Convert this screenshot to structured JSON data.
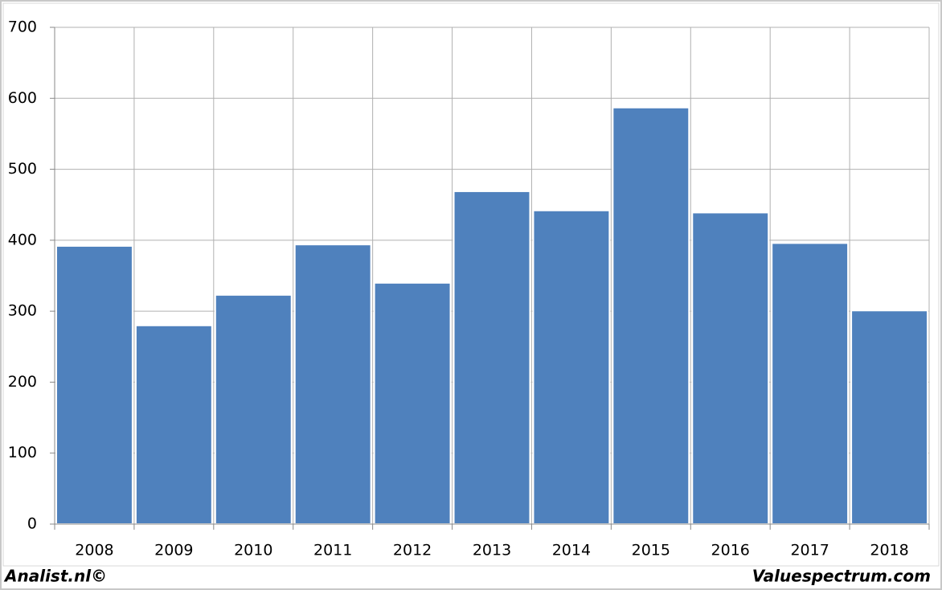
{
  "chart_data": {
    "type": "bar",
    "categories": [
      "2008",
      "2009",
      "2010",
      "2011",
      "2012",
      "2013",
      "2014",
      "2015",
      "2016",
      "2017",
      "2018"
    ],
    "values": [
      392,
      280,
      323,
      394,
      340,
      469,
      442,
      587,
      439,
      396,
      301
    ],
    "color": "#4f81bd",
    "ylim": [
      0,
      700
    ],
    "yticks": [
      0,
      100,
      200,
      300,
      400,
      500,
      600,
      700
    ],
    "grid": true,
    "credits": [
      "Analist.nl©",
      "Valuespectrum.com"
    ]
  }
}
